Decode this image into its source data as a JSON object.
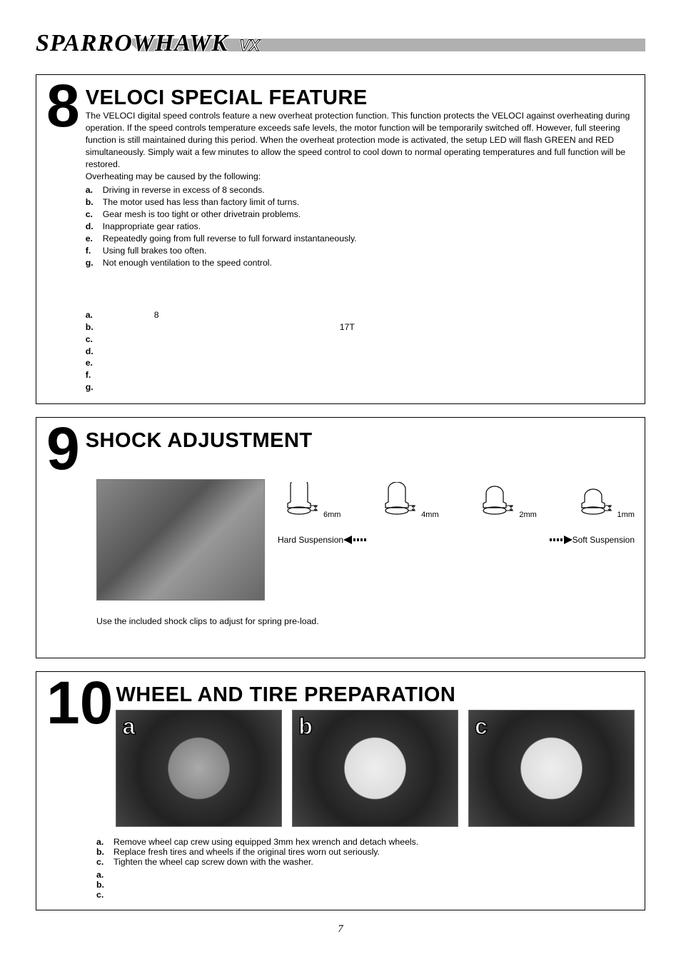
{
  "logo": {
    "main": "SPARROWHAWK",
    "suffix": "VX"
  },
  "pageNumber": "7",
  "section8": {
    "num": "8",
    "title": "VELOCI SPECIAL FEATURE",
    "intro": "The VELOCI digital speed controls feature a new overheat protection function. This function protects the VELOCI against overheating during operation. If the speed controls temperature exceeds safe levels, the motor function will be temporarily switched off. However, full steering function is still maintained during this period. When the overheat protection mode is activated, the setup LED will flash GREEN and RED simultaneously. Simply wait a few minutes to allow the speed control to cool down to normal operating temperatures and full function will be restored.",
    "causesIntro": "Overheating may be caused by the following:",
    "causes": [
      {
        "label": "a.",
        "text": "Driving in reverse in excess of 8 seconds."
      },
      {
        "label": "b.",
        "text": "The motor used has less than factory limit of turns."
      },
      {
        "label": "c.",
        "text": "Gear mesh is too tight or other drivetrain problems."
      },
      {
        "label": "d.",
        "text": "Inappropriate gear ratios."
      },
      {
        "label": "e.",
        "text": "Repeatedly going from full reverse to full forward instantaneously."
      },
      {
        "label": "f.",
        "text": "Using full brakes too often."
      },
      {
        "label": "g.",
        "text": "Not enough ventilation to the speed control."
      }
    ],
    "blankList": [
      {
        "label": "a.",
        "extra": "8",
        "extraOffset": "72px"
      },
      {
        "label": "b.",
        "extra": "17T",
        "extraOffset": "332px"
      },
      {
        "label": "c."
      },
      {
        "label": "d."
      },
      {
        "label": "e."
      },
      {
        "label": "f."
      },
      {
        "label": "g."
      }
    ]
  },
  "section9": {
    "num": "9",
    "title": "SHOCK ADJUSTMENT",
    "clips": [
      {
        "size": "6mm",
        "h": 24
      },
      {
        "size": "4mm",
        "h": 18
      },
      {
        "size": "2mm",
        "h": 12
      },
      {
        "size": "1mm",
        "h": 8
      }
    ],
    "hardLabel": "Hard Suspension",
    "softLabel": "Soft Suspension",
    "caption": "Use the included shock clips to adjust for spring pre-load."
  },
  "section10": {
    "num": "10",
    "title": "WHEEL AND TIRE PREPARATION",
    "photos": [
      {
        "letter": "a",
        "white": false
      },
      {
        "letter": "b",
        "white": true
      },
      {
        "letter": "c",
        "white": true
      }
    ],
    "steps": [
      {
        "label": "a.",
        "text": "Remove wheel cap crew using equipped 3mm hex wrench and detach wheels."
      },
      {
        "label": "b.",
        "text": "Replace fresh tires and wheels if the original tires worn out seriously."
      },
      {
        "label": "c.",
        "text": "Tighten the wheel cap screw down with the washer."
      }
    ],
    "blankSteps": [
      {
        "label": "a."
      },
      {
        "label": "b."
      },
      {
        "label": "c."
      }
    ]
  }
}
